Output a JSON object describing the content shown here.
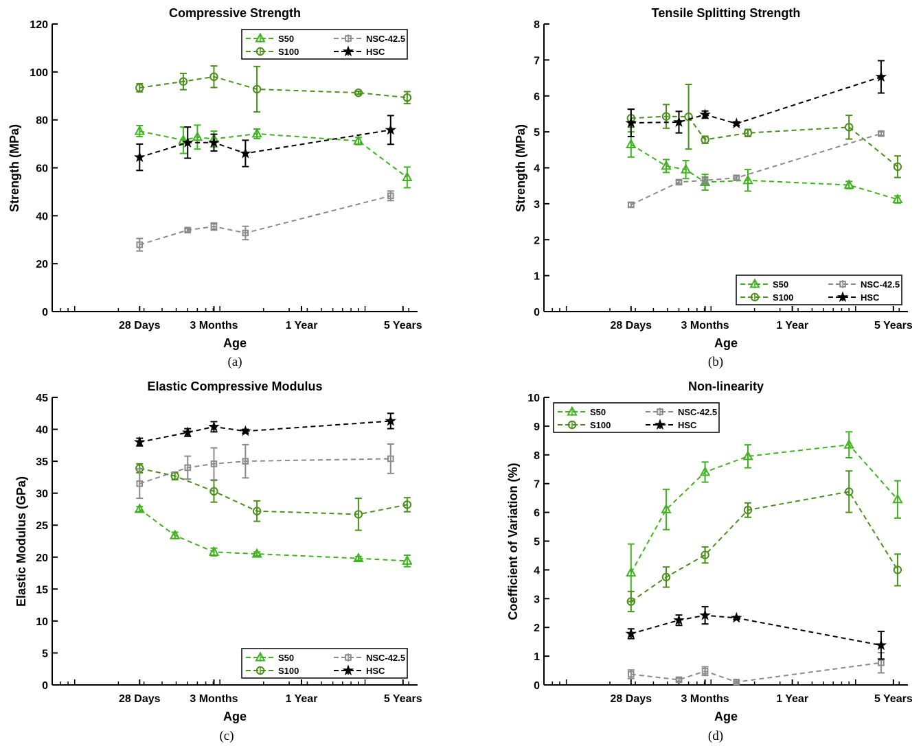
{
  "colors": {
    "S50": "#3fb21f",
    "S100": "#4a8f1a",
    "NSC": "#8a8a8a",
    "HSC": "#000000"
  },
  "legend_entries": [
    {
      "series": "S50",
      "label": "S50",
      "marker": "triangle"
    },
    {
      "series": "NSC",
      "label": "NSC-42.5",
      "marker": "square"
    },
    {
      "series": "S100",
      "label": "S100",
      "marker": "circle"
    },
    {
      "series": "HSC",
      "label": "HSC",
      "marker": "star"
    }
  ],
  "chart_data": [
    {
      "type": "line",
      "panel": "(a)",
      "title": "Compressive Strength",
      "xlabel": "Age",
      "ylabel": "Strength (MPa)",
      "x_scale": "log",
      "x_unit": "days",
      "xlim": [
        7,
        2300
      ],
      "x_ticks": [
        {
          "v": 28,
          "label": "28 Days"
        },
        {
          "v": 91,
          "label": "3 Months"
        },
        {
          "v": 365,
          "label": "1 Year"
        },
        {
          "v": 1825,
          "label": "5 Years"
        }
      ],
      "ylim": [
        0,
        120
      ],
      "y_ticks": [
        0,
        20,
        40,
        60,
        80,
        100,
        120
      ],
      "legend": "top-right",
      "series": [
        {
          "name": "S50",
          "x": [
            28,
            56,
            70,
            91,
            180,
            900,
            1950
          ],
          "y": [
            75.3,
            71.5,
            72.8,
            72,
            74.2,
            71.2,
            56
          ],
          "err": [
            2.3,
            5.5,
            5,
            3.3,
            2,
            1.5,
            4.3
          ]
        },
        {
          "name": "S100",
          "x": [
            28,
            56,
            91,
            180,
            900,
            1950
          ],
          "y": [
            93.4,
            96,
            98,
            92.8,
            91.3,
            89.3
          ],
          "err": [
            1.7,
            3.4,
            4.5,
            9.5,
            0.6,
            2.5
          ]
        },
        {
          "name": "NSC-42.5",
          "x": [
            28,
            60,
            91,
            150,
            1500
          ],
          "y": [
            27.9,
            34,
            35.5,
            32.8,
            48.3
          ],
          "err": [
            2.6,
            0.6,
            1.5,
            2.8,
            2
          ]
        },
        {
          "name": "HSC",
          "x": [
            28,
            60,
            91,
            150,
            1500
          ],
          "y": [
            64.4,
            70.5,
            70.5,
            66,
            75.8
          ],
          "err": [
            5.5,
            6.5,
            3.5,
            5.5,
            6
          ]
        }
      ]
    },
    {
      "type": "line",
      "panel": "(b)",
      "title": "Tensile Splitting Strength",
      "xlabel": "Age",
      "ylabel": "Strength (MPa)",
      "x_scale": "log",
      "x_unit": "days",
      "xlim": [
        7,
        2300
      ],
      "x_ticks": [
        {
          "v": 28,
          "label": "28 Days"
        },
        {
          "v": 91,
          "label": "3 Months"
        },
        {
          "v": 365,
          "label": "1 Year"
        },
        {
          "v": 1825,
          "label": "5 Years"
        }
      ],
      "ylim": [
        0,
        8
      ],
      "y_ticks": [
        0,
        1,
        2,
        3,
        4,
        5,
        6,
        7,
        8
      ],
      "legend": "bottom-right",
      "series": [
        {
          "name": "S50",
          "x": [
            28,
            49,
            67,
            91,
            180,
            900,
            1950
          ],
          "y": [
            4.65,
            4.05,
            3.95,
            3.6,
            3.65,
            3.52,
            3.12
          ],
          "err": [
            0.35,
            0.18,
            0.25,
            0.22,
            0.3,
            0.1,
            0.1
          ]
        },
        {
          "name": "S100",
          "x": [
            28,
            49,
            70,
            91,
            180,
            900,
            1950
          ],
          "y": [
            5.38,
            5.43,
            5.42,
            4.78,
            4.97,
            5.13,
            4.03
          ],
          "err": [
            0.25,
            0.33,
            0.9,
            0.1,
            0.1,
            0.33,
            0.3
          ]
        },
        {
          "name": "NSC-42.5",
          "x": [
            28,
            60,
            91,
            150,
            1500
          ],
          "y": [
            2.97,
            3.6,
            3.65,
            3.72,
            4.95
          ],
          "err": [
            0.06,
            0.05,
            0.1,
            0.05,
            0.05
          ]
        },
        {
          "name": "HSC",
          "x": [
            28,
            60,
            91,
            150,
            1500
          ],
          "y": [
            5.25,
            5.27,
            5.48,
            5.23,
            6.53
          ],
          "err": [
            0.38,
            0.3,
            0.1,
            0.05,
            0.45
          ]
        }
      ]
    },
    {
      "type": "line",
      "panel": "(c)",
      "title": "Elastic Compressive Modulus",
      "xlabel": "Age",
      "ylabel": "Elastic Modulus (GPa)",
      "x_scale": "log",
      "x_unit": "days",
      "xlim": [
        7,
        2300
      ],
      "x_ticks": [
        {
          "v": 28,
          "label": "28 Days"
        },
        {
          "v": 91,
          "label": "3 Months"
        },
        {
          "v": 365,
          "label": "1 Year"
        },
        {
          "v": 1825,
          "label": "5 Years"
        }
      ],
      "ylim": [
        0,
        45
      ],
      "y_ticks": [
        0,
        5,
        10,
        15,
        20,
        25,
        30,
        35,
        40,
        45
      ],
      "legend": "bottom-right",
      "series": [
        {
          "name": "S50",
          "x": [
            28,
            49,
            91,
            180,
            900,
            1950
          ],
          "y": [
            27.5,
            23.4,
            20.8,
            20.5,
            19.8,
            19.4
          ],
          "err": [
            0.4,
            0.5,
            0.6,
            0.3,
            0.3,
            0.9
          ]
        },
        {
          "name": "S100",
          "x": [
            28,
            49,
            91,
            180,
            900,
            1950
          ],
          "y": [
            33.9,
            32.7,
            30.3,
            27.2,
            26.7,
            28.2
          ],
          "err": [
            0.7,
            0.6,
            1.7,
            1.6,
            2.5,
            1.1
          ]
        },
        {
          "name": "NSC-42.5",
          "x": [
            28,
            60,
            91,
            150,
            1500
          ],
          "y": [
            31.5,
            34,
            34.6,
            35,
            35.4
          ],
          "err": [
            2.3,
            1.8,
            2.5,
            2.6,
            2.3
          ]
        },
        {
          "name": "HSC",
          "x": [
            28,
            60,
            91,
            150,
            1500
          ],
          "y": [
            38,
            39.5,
            40.4,
            39.7,
            41.3
          ],
          "err": [
            0.6,
            0.6,
            0.8,
            0.3,
            1.2
          ]
        }
      ]
    },
    {
      "type": "line",
      "panel": "(d)",
      "title": "Non-linearity",
      "xlabel": "Age",
      "ylabel": "Coefficient of Variation (%)",
      "x_scale": "log",
      "x_unit": "days",
      "xlim": [
        7,
        2300
      ],
      "x_ticks": [
        {
          "v": 28,
          "label": "28 Days"
        },
        {
          "v": 91,
          "label": "3 Months"
        },
        {
          "v": 365,
          "label": "1 Year"
        },
        {
          "v": 1825,
          "label": "5 Years"
        }
      ],
      "ylim": [
        0,
        10
      ],
      "y_ticks": [
        0,
        1,
        2,
        3,
        4,
        5,
        6,
        7,
        8,
        9,
        10
      ],
      "legend": "top-left",
      "series": [
        {
          "name": "S50",
          "x": [
            28,
            49,
            91,
            180,
            900,
            1950
          ],
          "y": [
            3.9,
            6.1,
            7.4,
            7.95,
            8.35,
            6.45
          ],
          "err": [
            1.0,
            0.7,
            0.35,
            0.4,
            0.45,
            0.65
          ]
        },
        {
          "name": "S100",
          "x": [
            28,
            49,
            91,
            180,
            900,
            1950
          ],
          "y": [
            2.9,
            3.75,
            4.52,
            6.08,
            6.72,
            4.0
          ],
          "err": [
            0.35,
            0.35,
            0.28,
            0.25,
            0.72,
            0.55
          ]
        },
        {
          "name": "NSC-42.5",
          "x": [
            28,
            60,
            91,
            150,
            1500
          ],
          "y": [
            0.37,
            0.18,
            0.48,
            0.1,
            0.77
          ],
          "err": [
            0.15,
            0.05,
            0.15,
            0.04,
            0.35
          ]
        },
        {
          "name": "HSC",
          "x": [
            28,
            60,
            91,
            150,
            1500
          ],
          "y": [
            1.78,
            2.25,
            2.42,
            2.33,
            1.38
          ],
          "err": [
            0.17,
            0.18,
            0.3,
            0.05,
            0.48
          ]
        }
      ]
    }
  ]
}
